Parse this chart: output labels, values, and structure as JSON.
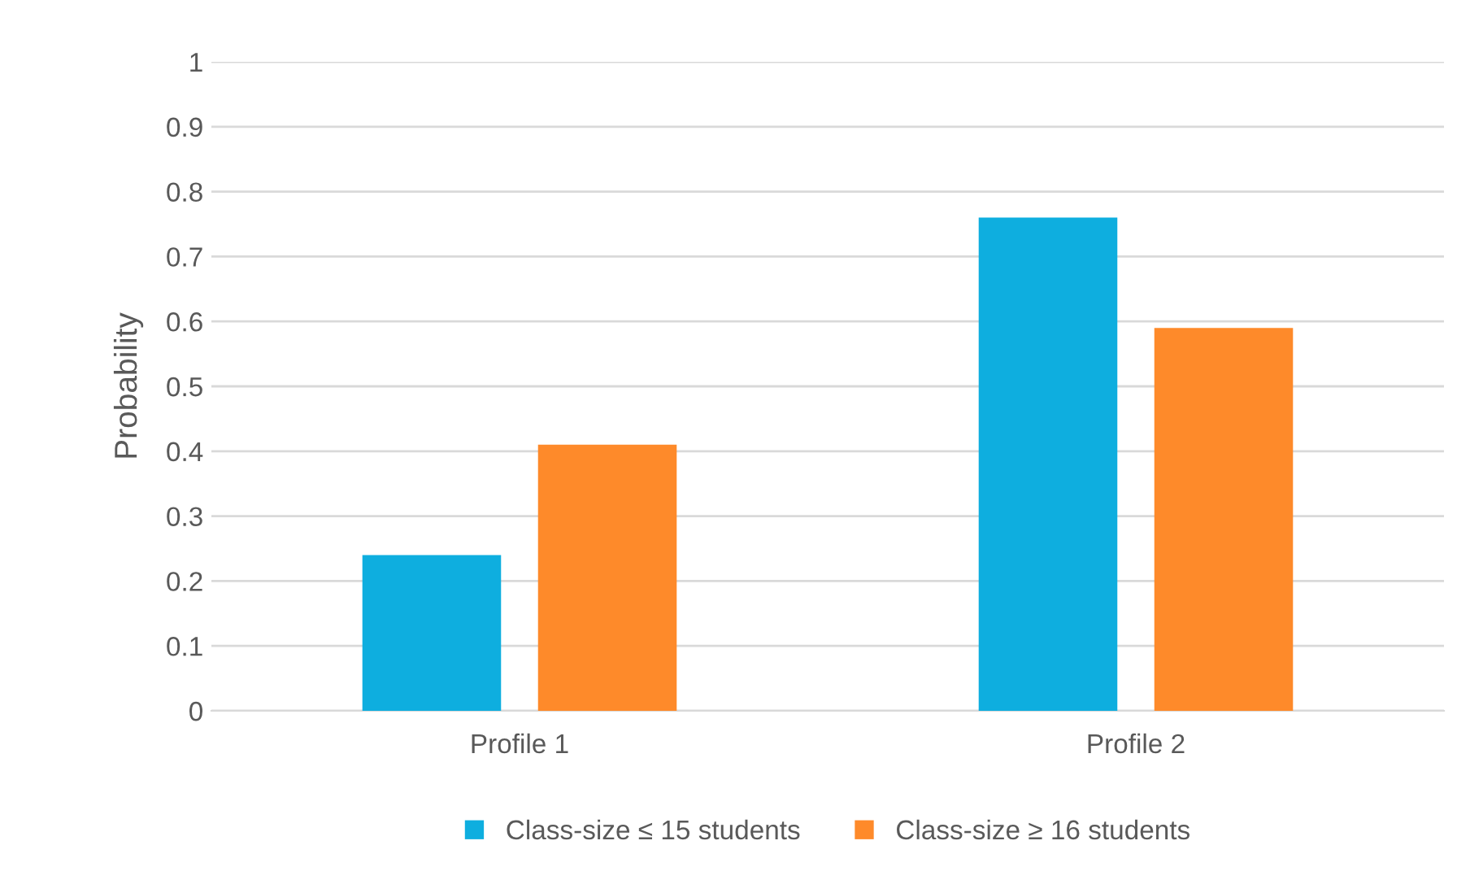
{
  "chart_data": {
    "type": "bar",
    "ylabel": "Probability",
    "categories": [
      "Profile 1",
      "Profile 2"
    ],
    "series": [
      {
        "name": "Class-size ≤ 15 students",
        "color": "#0eaedf",
        "values": [
          0.24,
          0.76
        ]
      },
      {
        "name": "Class-size ≥ 16 students",
        "color": "#fe8a2a",
        "values": [
          0.41,
          0.59
        ]
      }
    ],
    "ylim": [
      0,
      1
    ],
    "yticks": [
      0,
      0.1,
      0.2,
      0.3,
      0.4,
      0.5,
      0.6,
      0.7,
      0.8,
      0.9,
      1
    ],
    "grid": "y",
    "legend": "bottom"
  }
}
